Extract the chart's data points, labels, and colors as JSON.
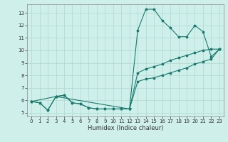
{
  "xlabel": "Humidex (Indice chaleur)",
  "xlim": [
    -0.5,
    23.5
  ],
  "ylim": [
    4.7,
    13.7
  ],
  "yticks": [
    5,
    6,
    7,
    8,
    9,
    10,
    11,
    12,
    13
  ],
  "xticks": [
    0,
    1,
    2,
    3,
    4,
    5,
    6,
    7,
    8,
    9,
    10,
    11,
    12,
    13,
    14,
    15,
    16,
    17,
    18,
    19,
    20,
    21,
    22,
    23
  ],
  "bg_color": "#cff0ea",
  "line_color": "#1a7a6e",
  "grid_color": "#aed8d0",
  "line1_x": [
    0,
    1,
    2,
    3,
    4,
    5,
    6,
    7,
    8,
    9,
    10,
    11,
    12,
    13,
    14,
    15,
    16,
    17,
    18,
    19,
    20,
    21,
    22,
    23
  ],
  "line1_y": [
    5.9,
    5.8,
    5.2,
    6.3,
    6.4,
    5.8,
    5.7,
    5.4,
    5.3,
    5.3,
    5.3,
    5.3,
    5.3,
    11.6,
    13.3,
    13.3,
    12.4,
    11.8,
    11.1,
    11.1,
    12.0,
    11.5,
    9.5,
    10.1
  ],
  "line2_x": [
    0,
    1,
    2,
    3,
    4,
    5,
    6,
    7,
    8,
    9,
    10,
    11,
    12,
    13,
    14,
    15,
    16,
    17,
    18,
    19,
    20,
    21,
    22,
    23
  ],
  "line2_y": [
    5.9,
    5.8,
    5.2,
    6.3,
    6.4,
    5.8,
    5.7,
    5.4,
    5.3,
    5.3,
    5.3,
    5.3,
    5.3,
    8.2,
    8.5,
    8.7,
    8.9,
    9.2,
    9.4,
    9.6,
    9.8,
    10.0,
    10.1,
    10.1
  ],
  "line3_x": [
    0,
    3,
    12,
    13,
    14,
    15,
    16,
    17,
    18,
    19,
    20,
    21,
    22,
    23
  ],
  "line3_y": [
    5.9,
    6.3,
    5.3,
    7.5,
    7.7,
    7.8,
    8.0,
    8.2,
    8.4,
    8.6,
    8.9,
    9.1,
    9.3,
    10.1
  ]
}
